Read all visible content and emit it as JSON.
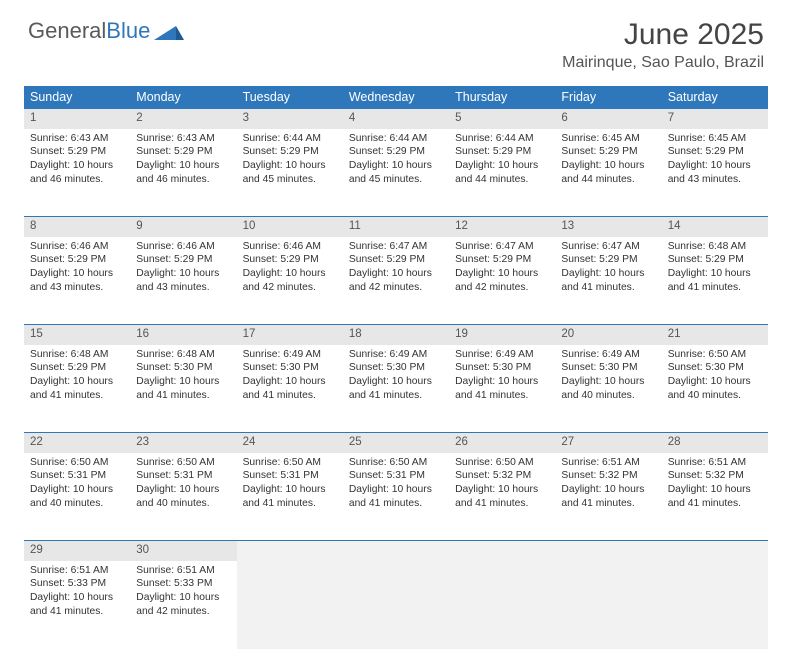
{
  "brand": {
    "word1": "General",
    "word2": "Blue"
  },
  "title": "June 2025",
  "location": "Mairinque, Sao Paulo, Brazil",
  "colors": {
    "header_blue": "#2f77bb",
    "daynum_bg": "#e7e7e7",
    "empty_bg": "#f2f2f2",
    "text": "#333333"
  },
  "weekdays": [
    "Sunday",
    "Monday",
    "Tuesday",
    "Wednesday",
    "Thursday",
    "Friday",
    "Saturday"
  ],
  "weeks": [
    [
      {
        "day": "1",
        "sunrise": "Sunrise: 6:43 AM",
        "sunset": "Sunset: 5:29 PM",
        "daylight": "Daylight: 10 hours and 46 minutes."
      },
      {
        "day": "2",
        "sunrise": "Sunrise: 6:43 AM",
        "sunset": "Sunset: 5:29 PM",
        "daylight": "Daylight: 10 hours and 46 minutes."
      },
      {
        "day": "3",
        "sunrise": "Sunrise: 6:44 AM",
        "sunset": "Sunset: 5:29 PM",
        "daylight": "Daylight: 10 hours and 45 minutes."
      },
      {
        "day": "4",
        "sunrise": "Sunrise: 6:44 AM",
        "sunset": "Sunset: 5:29 PM",
        "daylight": "Daylight: 10 hours and 45 minutes."
      },
      {
        "day": "5",
        "sunrise": "Sunrise: 6:44 AM",
        "sunset": "Sunset: 5:29 PM",
        "daylight": "Daylight: 10 hours and 44 minutes."
      },
      {
        "day": "6",
        "sunrise": "Sunrise: 6:45 AM",
        "sunset": "Sunset: 5:29 PM",
        "daylight": "Daylight: 10 hours and 44 minutes."
      },
      {
        "day": "7",
        "sunrise": "Sunrise: 6:45 AM",
        "sunset": "Sunset: 5:29 PM",
        "daylight": "Daylight: 10 hours and 43 minutes."
      }
    ],
    [
      {
        "day": "8",
        "sunrise": "Sunrise: 6:46 AM",
        "sunset": "Sunset: 5:29 PM",
        "daylight": "Daylight: 10 hours and 43 minutes."
      },
      {
        "day": "9",
        "sunrise": "Sunrise: 6:46 AM",
        "sunset": "Sunset: 5:29 PM",
        "daylight": "Daylight: 10 hours and 43 minutes."
      },
      {
        "day": "10",
        "sunrise": "Sunrise: 6:46 AM",
        "sunset": "Sunset: 5:29 PM",
        "daylight": "Daylight: 10 hours and 42 minutes."
      },
      {
        "day": "11",
        "sunrise": "Sunrise: 6:47 AM",
        "sunset": "Sunset: 5:29 PM",
        "daylight": "Daylight: 10 hours and 42 minutes."
      },
      {
        "day": "12",
        "sunrise": "Sunrise: 6:47 AM",
        "sunset": "Sunset: 5:29 PM",
        "daylight": "Daylight: 10 hours and 42 minutes."
      },
      {
        "day": "13",
        "sunrise": "Sunrise: 6:47 AM",
        "sunset": "Sunset: 5:29 PM",
        "daylight": "Daylight: 10 hours and 41 minutes."
      },
      {
        "day": "14",
        "sunrise": "Sunrise: 6:48 AM",
        "sunset": "Sunset: 5:29 PM",
        "daylight": "Daylight: 10 hours and 41 minutes."
      }
    ],
    [
      {
        "day": "15",
        "sunrise": "Sunrise: 6:48 AM",
        "sunset": "Sunset: 5:29 PM",
        "daylight": "Daylight: 10 hours and 41 minutes."
      },
      {
        "day": "16",
        "sunrise": "Sunrise: 6:48 AM",
        "sunset": "Sunset: 5:30 PM",
        "daylight": "Daylight: 10 hours and 41 minutes."
      },
      {
        "day": "17",
        "sunrise": "Sunrise: 6:49 AM",
        "sunset": "Sunset: 5:30 PM",
        "daylight": "Daylight: 10 hours and 41 minutes."
      },
      {
        "day": "18",
        "sunrise": "Sunrise: 6:49 AM",
        "sunset": "Sunset: 5:30 PM",
        "daylight": "Daylight: 10 hours and 41 minutes."
      },
      {
        "day": "19",
        "sunrise": "Sunrise: 6:49 AM",
        "sunset": "Sunset: 5:30 PM",
        "daylight": "Daylight: 10 hours and 41 minutes."
      },
      {
        "day": "20",
        "sunrise": "Sunrise: 6:49 AM",
        "sunset": "Sunset: 5:30 PM",
        "daylight": "Daylight: 10 hours and 40 minutes."
      },
      {
        "day": "21",
        "sunrise": "Sunrise: 6:50 AM",
        "sunset": "Sunset: 5:30 PM",
        "daylight": "Daylight: 10 hours and 40 minutes."
      }
    ],
    [
      {
        "day": "22",
        "sunrise": "Sunrise: 6:50 AM",
        "sunset": "Sunset: 5:31 PM",
        "daylight": "Daylight: 10 hours and 40 minutes."
      },
      {
        "day": "23",
        "sunrise": "Sunrise: 6:50 AM",
        "sunset": "Sunset: 5:31 PM",
        "daylight": "Daylight: 10 hours and 40 minutes."
      },
      {
        "day": "24",
        "sunrise": "Sunrise: 6:50 AM",
        "sunset": "Sunset: 5:31 PM",
        "daylight": "Daylight: 10 hours and 41 minutes."
      },
      {
        "day": "25",
        "sunrise": "Sunrise: 6:50 AM",
        "sunset": "Sunset: 5:31 PM",
        "daylight": "Daylight: 10 hours and 41 minutes."
      },
      {
        "day": "26",
        "sunrise": "Sunrise: 6:50 AM",
        "sunset": "Sunset: 5:32 PM",
        "daylight": "Daylight: 10 hours and 41 minutes."
      },
      {
        "day": "27",
        "sunrise": "Sunrise: 6:51 AM",
        "sunset": "Sunset: 5:32 PM",
        "daylight": "Daylight: 10 hours and 41 minutes."
      },
      {
        "day": "28",
        "sunrise": "Sunrise: 6:51 AM",
        "sunset": "Sunset: 5:32 PM",
        "daylight": "Daylight: 10 hours and 41 minutes."
      }
    ],
    [
      {
        "day": "29",
        "sunrise": "Sunrise: 6:51 AM",
        "sunset": "Sunset: 5:33 PM",
        "daylight": "Daylight: 10 hours and 41 minutes."
      },
      {
        "day": "30",
        "sunrise": "Sunrise: 6:51 AM",
        "sunset": "Sunset: 5:33 PM",
        "daylight": "Daylight: 10 hours and 42 minutes."
      },
      {
        "empty": true
      },
      {
        "empty": true
      },
      {
        "empty": true
      },
      {
        "empty": true
      },
      {
        "empty": true
      }
    ]
  ]
}
